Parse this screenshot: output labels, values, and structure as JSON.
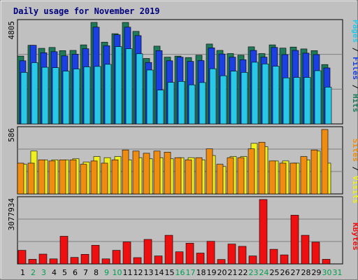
{
  "chart_data": {
    "type": "bar",
    "title": "Daily usage for November 2019",
    "categories": [
      "1",
      "2",
      "3",
      "4",
      "5",
      "6",
      "7",
      "8",
      "9",
      "10",
      "11",
      "12",
      "13",
      "14",
      "15",
      "16",
      "17",
      "18",
      "19",
      "20",
      "21",
      "22",
      "23",
      "24",
      "25",
      "26",
      "27",
      "28",
      "29",
      "30",
      "31"
    ],
    "weekend_days": [
      "2",
      "3",
      "9",
      "10",
      "16",
      "17",
      "23",
      "24",
      "30",
      "31"
    ],
    "panels": [
      {
        "name": "hits-files-pages",
        "max_label": "4805",
        "ymax": 4805,
        "series": [
          {
            "name": "Hits",
            "color": "#1f7a5a",
            "values": [
              3210,
              3720,
              3580,
              3620,
              3470,
              3480,
              3740,
              4805,
              3870,
              4270,
              4805,
              4380,
              3100,
              3680,
              3160,
              3210,
              3140,
              3250,
              3780,
              3480,
              3330,
              3250,
              3650,
              3330,
              3740,
              3590,
              3640,
              3550,
              3470,
              2810,
              0
            ]
          },
          {
            "name": "Files",
            "color": "#1b3fe0",
            "values": [
              2990,
              3720,
              3370,
              3420,
              3220,
              3300,
              3560,
              4580,
              3700,
              4220,
              4580,
              4180,
              2910,
              3470,
              2990,
              3160,
              2960,
              3000,
              3600,
              3310,
              3160,
              3040,
              3480,
              3160,
              3620,
              3280,
              3480,
              3350,
              3280,
              2650,
              0
            ]
          },
          {
            "name": "Pages",
            "color": "#27c8e8",
            "values": [
              2440,
              2900,
              2680,
              2660,
              2500,
              2600,
              2700,
              2720,
              2820,
              3660,
              3560,
              3320,
              2550,
              1600,
              1970,
              2010,
              1850,
              1960,
              2610,
              2280,
              2500,
              2440,
              2920,
              2840,
              2730,
              2180,
              2200,
              2200,
              2520,
              1740,
              0
            ]
          }
        ]
      },
      {
        "name": "sites-visits",
        "max_label": "586",
        "ymax": 586,
        "series": [
          {
            "name": "Visits",
            "color": "#f0f020",
            "values": [
              270,
              390,
              310,
              310,
              310,
              320,
              290,
              340,
              330,
              340,
              310,
              330,
              320,
              330,
              320,
              330,
              330,
              310,
              350,
              250,
              340,
              340,
              460,
              430,
              300,
              300,
              280,
              310,
              390,
              280,
              0
            ]
          },
          {
            "name": "Sites",
            "color": "#f08c10",
            "values": [
              280,
              280,
              310,
              300,
              310,
              310,
              270,
              300,
              280,
              310,
              400,
              390,
              370,
              390,
              380,
              330,
              310,
              330,
              410,
              270,
              330,
              330,
              410,
              470,
              300,
              280,
              280,
              340,
              400,
              586,
              0
            ]
          }
        ]
      },
      {
        "name": "kbytes",
        "max_label": "3077934",
        "ymax": 3077934,
        "series": [
          {
            "name": "KBytes",
            "color": "#ee1010",
            "values": [
              650000,
              220000,
              470000,
              240000,
              1320000,
              310000,
              460000,
              890000,
              240000,
              650000,
              1050000,
              300000,
              1170000,
              380000,
              1370000,
              580000,
              990000,
              520000,
              1080000,
              210000,
              950000,
              840000,
              380000,
              3077934,
              700000,
              430000,
              2330000,
              1370000,
              1040000,
              220000,
              0
            ]
          }
        ]
      }
    ],
    "right_axis_label": [
      "Pages",
      "Files",
      "Hits",
      "Sites",
      "Visits",
      "KBytes"
    ]
  }
}
